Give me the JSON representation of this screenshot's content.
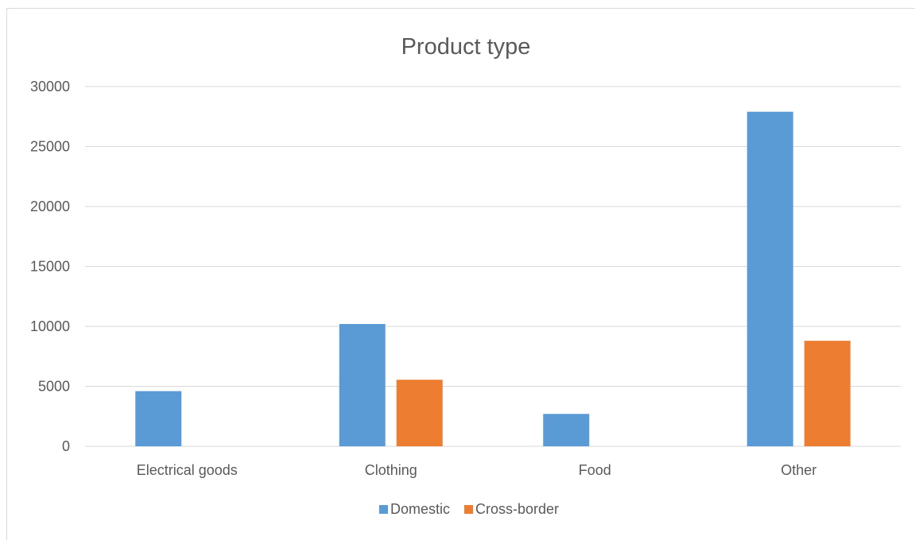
{
  "chart_data": {
    "type": "bar",
    "title": "Product type",
    "xlabel": "",
    "ylabel": "",
    "categories": [
      "Electrical goods",
      "Clothing",
      "Food",
      "Other"
    ],
    "series": [
      {
        "name": "Domestic",
        "color": "#5b9bd5",
        "values": [
          4600,
          10200,
          2700,
          27900
        ]
      },
      {
        "name": "Cross-border",
        "color": "#ed7d31",
        "values": [
          0,
          5550,
          0,
          8800
        ]
      }
    ],
    "ylim": [
      0,
      30000
    ],
    "yticks": [
      "0",
      "5000",
      "10000",
      "15000",
      "20000",
      "25000",
      "30000"
    ],
    "grid": true,
    "legend_position": "bottom"
  }
}
